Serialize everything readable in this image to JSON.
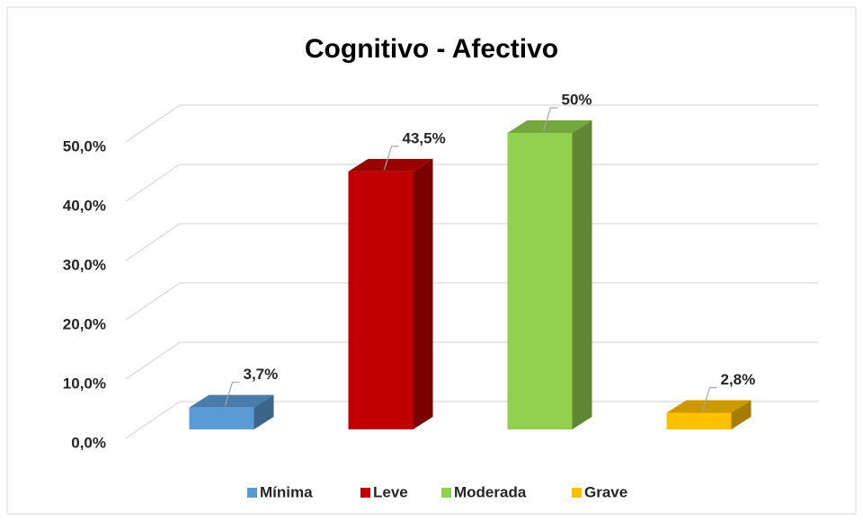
{
  "chart_data": {
    "type": "bar3d",
    "title": "Cognitivo - Afectivo",
    "categories": [
      "Mínima",
      "Leve",
      "Moderada",
      "Grave"
    ],
    "values": [
      3.7,
      43.5,
      50,
      2.8
    ],
    "value_labels": [
      "3,7%",
      "43,5%",
      "50%",
      "2,8%"
    ],
    "colors": [
      "#5b9bd5",
      "#c00000",
      "#92d050",
      "#ffc000"
    ],
    "ylim": [
      0,
      50
    ],
    "yticks": [
      {
        "value": 0,
        "label": "0,0%"
      },
      {
        "value": 10,
        "label": "10,0%"
      },
      {
        "value": 20,
        "label": "20,0%"
      },
      {
        "value": 30,
        "label": "30,0%"
      },
      {
        "value": 40,
        "label": "40,0%"
      },
      {
        "value": 50,
        "label": "50,0%"
      }
    ],
    "grid": true,
    "legend": "bottom"
  }
}
